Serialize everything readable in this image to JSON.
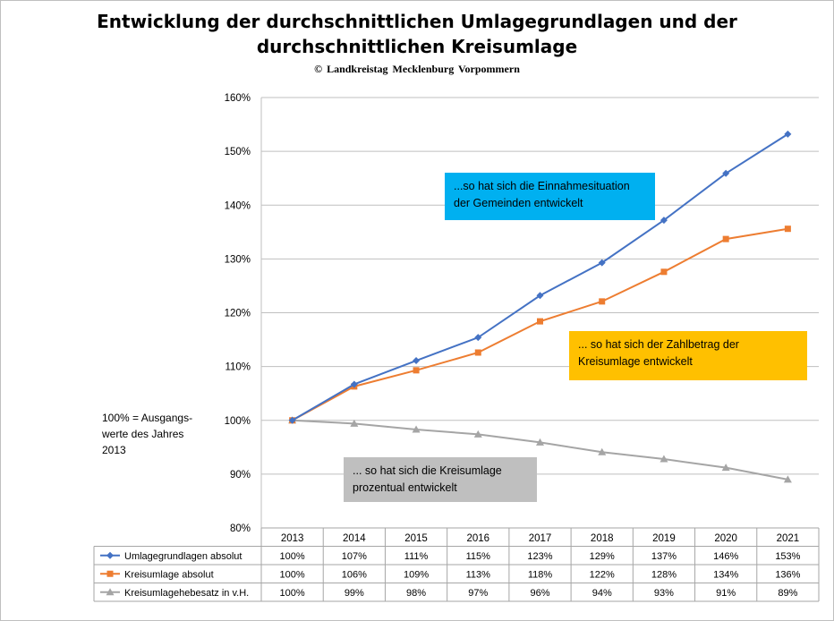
{
  "chart_data": {
    "type": "line",
    "title_line1": "Entwicklung der durchschnittlichen Umlagegrundlagen und der",
    "title_line2": "durchschnittlichen Kreisumlage",
    "subtitle": "© Landkreistag  Mecklenburg  Vorpommern",
    "categories": [
      "2013",
      "2014",
      "2015",
      "2016",
      "2017",
      "2018",
      "2019",
      "2020",
      "2021"
    ],
    "y_ticks": [
      "80%",
      "90%",
      "100%",
      "110%",
      "120%",
      "130%",
      "140%",
      "150%",
      "160%"
    ],
    "ylim": [
      80,
      160
    ],
    "grid": true,
    "legend": "data-table-below",
    "series": [
      {
        "name": "Umlagegrundlagen absolut",
        "color": "#4472c4",
        "marker": "diamond",
        "values": [
          100,
          106.7,
          111.1,
          115.4,
          123.2,
          129.3,
          137.2,
          145.9,
          153.2
        ],
        "labels": [
          "100%",
          "107%",
          "111%",
          "115%",
          "123%",
          "129%",
          "137%",
          "146%",
          "153%"
        ]
      },
      {
        "name": "Kreisumlage absolut",
        "color": "#ed7d31",
        "marker": "square",
        "values": [
          100,
          106.3,
          109.3,
          112.6,
          118.4,
          122.1,
          127.6,
          133.7,
          135.6
        ],
        "labels": [
          "100%",
          "106%",
          "109%",
          "113%",
          "118%",
          "122%",
          "128%",
          "134%",
          "136%"
        ]
      },
      {
        "name": "Kreisumlagehebesatz in v.H.",
        "color": "#a5a5a5",
        "marker": "triangle",
        "values": [
          100,
          99.4,
          98.3,
          97.4,
          95.9,
          94.1,
          92.8,
          91.2,
          89.0
        ],
        "labels": [
          "100%",
          "99%",
          "98%",
          "97%",
          "96%",
          "94%",
          "93%",
          "91%",
          "89%"
        ]
      }
    ],
    "annotations": {
      "blue": [
        "...so hat sich die Einnahmesituation",
        "der Gemeinden entwickelt"
      ],
      "orange": [
        "... so hat sich der Zahlbetrag der",
        "Kreisumlage entwickelt"
      ],
      "gray": [
        "... so hat sich die Kreisumlage",
        "prozentual entwickelt"
      ],
      "side_note": [
        "100% = Ausgangs-",
        "werte des Jahres",
        "2013"
      ]
    }
  }
}
